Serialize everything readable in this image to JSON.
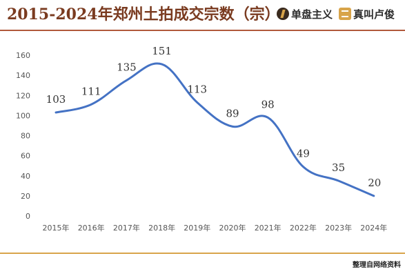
{
  "header": {
    "title": "2015-2024年郑州土拍成交宗数（宗）",
    "brand_left": "单盘主义",
    "brand_right": "真叫卢俊"
  },
  "footer": {
    "source": "整理自网络资料"
  },
  "colors": {
    "line": "#4472c4",
    "highlight": "#e60000",
    "title": "#7a3b20"
  },
  "chart_data": {
    "type": "line",
    "title": "2015-2024年郑州土拍成交宗数（宗）",
    "categories": [
      "2015年",
      "2016年",
      "2017年",
      "2018年",
      "2019年",
      "2020年",
      "2021年",
      "2022年",
      "2023年",
      "2024年"
    ],
    "series": [
      {
        "values": [
          103,
          111,
          135,
          151,
          113,
          89,
          98,
          49,
          35,
          20
        ]
      }
    ],
    "ylim": [
      0,
      160
    ],
    "yticks": [
      0,
      20,
      40,
      60,
      80,
      100,
      120,
      140,
      160
    ],
    "grid": false,
    "smooth": true,
    "highlight_last_label": true
  }
}
